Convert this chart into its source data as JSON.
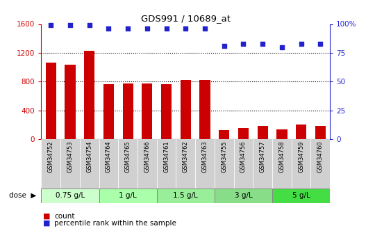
{
  "title": "GDS991 / 10689_at",
  "samples": [
    "GSM34752",
    "GSM34753",
    "GSM34754",
    "GSM34764",
    "GSM34765",
    "GSM34766",
    "GSM34761",
    "GSM34762",
    "GSM34763",
    "GSM34755",
    "GSM34756",
    "GSM34757",
    "GSM34758",
    "GSM34759",
    "GSM34760"
  ],
  "counts": [
    1060,
    1030,
    1230,
    760,
    770,
    770,
    760,
    820,
    820,
    130,
    160,
    185,
    140,
    200,
    185
  ],
  "percentile": [
    99,
    99,
    99,
    96,
    96,
    96,
    96,
    96,
    96,
    81,
    83,
    83,
    80,
    83,
    83
  ],
  "dose_groups": [
    {
      "label": "0.75 g/L",
      "indices": [
        0,
        1,
        2
      ],
      "color": "#ccffcc"
    },
    {
      "label": "1 g/L",
      "indices": [
        3,
        4,
        5
      ],
      "color": "#aaffaa"
    },
    {
      "label": "1.5 g/L",
      "indices": [
        6,
        7,
        8
      ],
      "color": "#99ee99"
    },
    {
      "label": "3 g/L",
      "indices": [
        9,
        10,
        11
      ],
      "color": "#88dd88"
    },
    {
      "label": "5 g/L",
      "indices": [
        12,
        13,
        14
      ],
      "color": "#44dd44"
    }
  ],
  "bar_color": "#cc0000",
  "dot_color": "#2222cc",
  "left_ylim": [
    0,
    1600
  ],
  "left_yticks": [
    0,
    400,
    800,
    1200,
    1600
  ],
  "right_ylim": [
    0,
    100
  ],
  "right_yticks": [
    0,
    25,
    50,
    75,
    100
  ],
  "sample_bg_color": "#d0d0d0",
  "plot_bg_color": "#ffffff"
}
